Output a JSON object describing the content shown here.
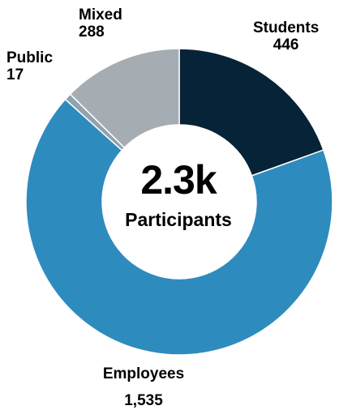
{
  "chart_data": {
    "type": "pie",
    "categories": [
      "Students",
      "Employees",
      "Public",
      "Mixed"
    ],
    "values": [
      446,
      1535,
      17,
      288
    ],
    "value_labels": [
      "446",
      "1,535",
      "17",
      "288"
    ],
    "colors": [
      "#062337",
      "#2E8BBE",
      "#8FA3AE",
      "#A6ADB2"
    ],
    "center_value": "2.3k",
    "center_caption": "Participants",
    "donut": true
  }
}
